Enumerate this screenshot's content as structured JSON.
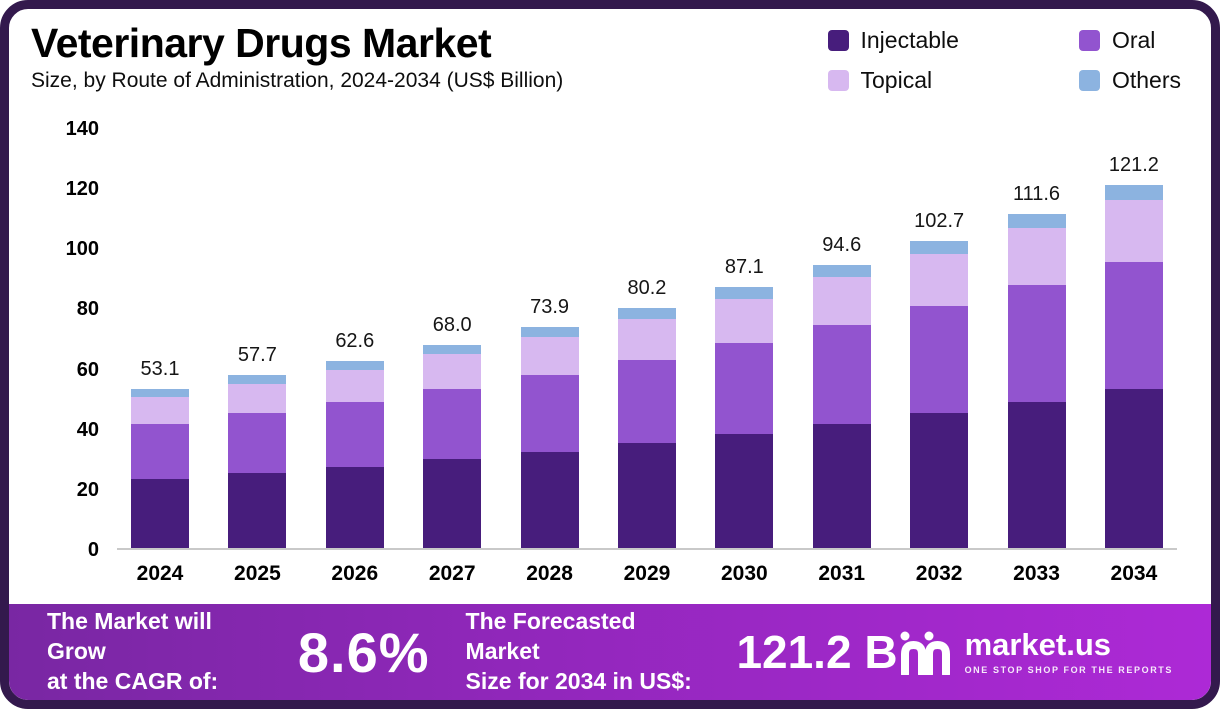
{
  "header": {
    "title": "Veterinary Drugs Market",
    "subtitle": "Size, by Route of Administration, 2024-2034 (US$ Billion)"
  },
  "legend": {
    "position": "top-right",
    "items": [
      {
        "label": "Injectable",
        "color": "#471d7c"
      },
      {
        "label": "Oral",
        "color": "#9254cf"
      },
      {
        "label": "Topical",
        "color": "#d7b8f0"
      },
      {
        "label": "Others",
        "color": "#8cb3e0"
      }
    ]
  },
  "chart_data": {
    "type": "bar",
    "stacked": true,
    "title": "Veterinary Drugs Market Size, by Route of Administration, 2024-2034 (US$ Billion)",
    "xlabel": "",
    "ylabel": "US$ Billion",
    "ylim": [
      0,
      140
    ],
    "ytick_step": 20,
    "grid": false,
    "legend_position": "top-right",
    "categories": [
      "2024",
      "2025",
      "2026",
      "2027",
      "2028",
      "2029",
      "2030",
      "2031",
      "2032",
      "2033",
      "2034"
    ],
    "totals": [
      53.1,
      57.7,
      62.6,
      68.0,
      73.9,
      80.2,
      87.1,
      94.6,
      102.7,
      111.6,
      121.2
    ],
    "series": [
      {
        "name": "Injectable",
        "color": "#471d7c",
        "values": [
          23.0,
          25.0,
          27.2,
          29.6,
          32.2,
          35.0,
          38.1,
          41.4,
          45.0,
          48.9,
          53.2
        ]
      },
      {
        "name": "Oral",
        "color": "#9254cf",
        "values": [
          18.4,
          20.0,
          21.7,
          23.6,
          25.7,
          27.9,
          30.3,
          33.0,
          35.8,
          38.9,
          42.3
        ]
      },
      {
        "name": "Topical",
        "color": "#d7b8f0",
        "values": [
          9.1,
          9.9,
          10.7,
          11.6,
          12.6,
          13.7,
          14.9,
          16.2,
          17.6,
          19.2,
          20.8
        ]
      },
      {
        "name": "Others",
        "color": "#8cb3e0",
        "values": [
          2.6,
          2.8,
          3.0,
          3.2,
          3.4,
          3.6,
          3.8,
          4.0,
          4.3,
          4.6,
          4.9
        ]
      }
    ]
  },
  "footer": {
    "cagr_label": "The Market will Grow\nat the CAGR of:",
    "cagr_value": "8.6%",
    "forecast_label": "The Forecasted Market\nSize for 2034 in US$:",
    "forecast_value": "121.2 B",
    "brand": "market.us",
    "brand_tagline": "ONE STOP SHOP FOR THE REPORTS"
  }
}
